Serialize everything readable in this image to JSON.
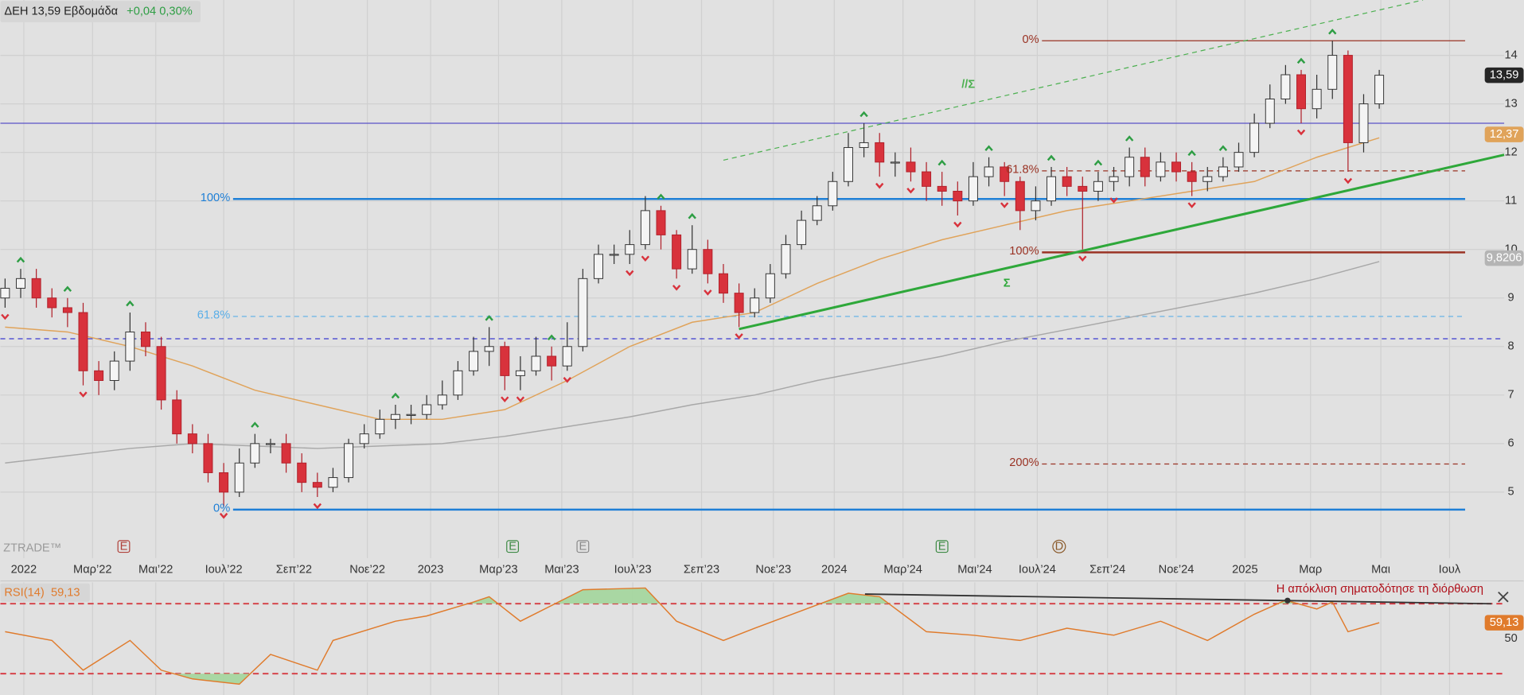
{
  "header": {
    "symbol": "ΔΕΗ 13,59 Εβδομάδα",
    "change": "+0,04 0,30%"
  },
  "chart_data": [
    {
      "type": "candlestick",
      "open": [
        9.0,
        9.2,
        9.4,
        9.0,
        8.8,
        8.7,
        7.5,
        7.3,
        7.7,
        8.3,
        8.0,
        6.9,
        6.2,
        6.0,
        5.4,
        5.0,
        5.6,
        6.0,
        6.0,
        5.6,
        5.2,
        5.1,
        5.3,
        6.0,
        6.2,
        6.5,
        6.6,
        6.6,
        6.8,
        7.0,
        7.5,
        7.9,
        8.0,
        7.4,
        7.5,
        7.8,
        7.6,
        8.0,
        9.4,
        9.9,
        9.9,
        10.1,
        10.8,
        10.3,
        9.6,
        10.0,
        9.5,
        9.1,
        8.7,
        9.0,
        9.5,
        10.1,
        10.6,
        10.9,
        11.4,
        12.1,
        12.2,
        11.8,
        11.8,
        11.6,
        11.3,
        11.2,
        11.0,
        11.5,
        11.7,
        11.4,
        10.8,
        11.0,
        11.5,
        11.3,
        11.2,
        11.4,
        11.5,
        11.9,
        11.5,
        11.8,
        11.6,
        11.4,
        11.5,
        11.7,
        12.0,
        12.6,
        13.1,
        13.6,
        12.9,
        13.3,
        14.0,
        12.2,
        13.0
      ],
      "high": [
        9.4,
        9.6,
        9.6,
        9.2,
        9.0,
        8.9,
        7.7,
        7.9,
        8.7,
        8.5,
        8.2,
        7.1,
        6.4,
        6.2,
        5.6,
        5.9,
        6.2,
        6.1,
        6.2,
        5.8,
        5.4,
        5.5,
        6.1,
        6.4,
        6.7,
        6.8,
        6.8,
        7.0,
        7.3,
        7.7,
        8.2,
        8.4,
        8.1,
        7.8,
        8.2,
        8.0,
        8.5,
        9.6,
        10.1,
        10.1,
        10.4,
        11.1,
        10.9,
        10.4,
        10.5,
        10.2,
        9.7,
        9.3,
        9.2,
        9.7,
        10.3,
        10.8,
        11.1,
        11.6,
        12.4,
        12.6,
        12.4,
        12.0,
        12.1,
        11.8,
        11.6,
        11.4,
        11.8,
        11.9,
        11.8,
        11.5,
        11.3,
        11.7,
        11.7,
        11.5,
        11.6,
        11.7,
        12.1,
        12.1,
        12.0,
        12.0,
        11.8,
        11.7,
        11.9,
        12.2,
        12.8,
        13.4,
        13.8,
        13.7,
        13.6,
        14.3,
        14.1,
        13.2,
        13.7
      ],
      "low": [
        8.8,
        9.0,
        8.8,
        8.6,
        8.4,
        7.2,
        7.0,
        7.1,
        7.5,
        7.8,
        6.7,
        6.0,
        5.8,
        5.2,
        4.7,
        4.9,
        5.5,
        5.8,
        5.4,
        5.0,
        4.9,
        5.0,
        5.2,
        5.9,
        6.1,
        6.3,
        6.4,
        6.5,
        6.7,
        6.9,
        7.4,
        7.6,
        7.1,
        7.1,
        7.4,
        7.3,
        7.5,
        7.9,
        9.3,
        9.7,
        9.7,
        10.0,
        10.0,
        9.4,
        9.5,
        9.3,
        8.9,
        8.4,
        8.6,
        8.9,
        9.4,
        10.0,
        10.5,
        10.8,
        11.3,
        11.9,
        11.5,
        11.5,
        11.4,
        11.0,
        10.9,
        10.7,
        10.9,
        11.3,
        11.1,
        10.4,
        10.6,
        10.9,
        11.1,
        10.0,
        11.0,
        11.2,
        11.3,
        11.3,
        11.4,
        11.4,
        11.1,
        11.2,
        11.4,
        11.6,
        11.9,
        12.5,
        13.0,
        12.6,
        12.7,
        13.1,
        11.6,
        12.0,
        12.9
      ],
      "close": [
        9.2,
        9.4,
        9.0,
        8.8,
        8.7,
        7.5,
        7.3,
        7.7,
        8.3,
        8.0,
        6.9,
        6.2,
        6.0,
        5.4,
        5.0,
        5.6,
        6.0,
        6.0,
        5.6,
        5.2,
        5.1,
        5.3,
        6.0,
        6.2,
        6.5,
        6.6,
        6.6,
        6.8,
        7.0,
        7.5,
        7.9,
        8.0,
        7.4,
        7.5,
        7.8,
        7.6,
        8.0,
        9.4,
        9.9,
        9.9,
        10.1,
        10.8,
        10.3,
        9.6,
        10.0,
        9.5,
        9.1,
        8.7,
        9.0,
        9.5,
        10.1,
        10.6,
        10.9,
        11.4,
        12.1,
        12.2,
        11.8,
        11.8,
        11.6,
        11.3,
        11.2,
        11.0,
        11.5,
        11.7,
        11.4,
        10.8,
        11.0,
        11.5,
        11.3,
        11.2,
        11.4,
        11.5,
        11.9,
        11.5,
        11.8,
        11.6,
        11.4,
        11.5,
        11.7,
        12.0,
        12.6,
        13.1,
        13.6,
        12.9,
        13.3,
        14.0,
        12.2,
        13.0,
        13.59
      ],
      "up_color": "#f4f4f4",
      "down_color": "#d8323c",
      "xlim": [
        -0.3,
        96
      ],
      "xticks": [
        {
          "value": 1.2,
          "label": "2022"
        },
        {
          "value": 5.6,
          "label": "Μαρ’22"
        },
        {
          "value": 9.65,
          "label": "Μαι’22"
        },
        {
          "value": 14.0,
          "label": "Ιουλ’22"
        },
        {
          "value": 18.5,
          "label": "Σεπ’22"
        },
        {
          "value": 23.2,
          "label": "Νοε’22"
        },
        {
          "value": 27.25,
          "label": "2023"
        },
        {
          "value": 31.6,
          "label": "Μαρ’23"
        },
        {
          "value": 35.65,
          "label": "Μαι’23"
        },
        {
          "value": 40.2,
          "label": "Ιουλ’23"
        },
        {
          "value": 44.6,
          "label": "Σεπ’23"
        },
        {
          "value": 49.2,
          "label": "Νοε’23"
        },
        {
          "value": 53.1,
          "label": "2024"
        },
        {
          "value": 57.5,
          "label": "Μαρ’24"
        },
        {
          "value": 62.1,
          "label": "Μαι’24"
        },
        {
          "value": 66.1,
          "label": "Ιουλ’24"
        },
        {
          "value": 70.6,
          "label": "Σεπ’24"
        },
        {
          "value": 75.0,
          "label": "Νοε’24"
        },
        {
          "value": 79.4,
          "label": "2025"
        },
        {
          "value": 83.6,
          "label": "Μαρ"
        },
        {
          "value": 88.1,
          "label": "Μαι"
        },
        {
          "value": 92.5,
          "label": "Ιουλ"
        }
      ],
      "ylim": [
        3.64,
        15.14
      ],
      "yticks": [
        5,
        6,
        7,
        8,
        9,
        10,
        11,
        12,
        13,
        14
      ],
      "grid": true,
      "overlays": [
        {
          "color": "#e0a35a",
          "x": [
            0,
            4,
            8,
            12,
            16,
            20,
            24,
            28,
            32,
            36,
            40,
            44,
            48,
            52,
            56,
            60,
            64,
            68,
            72,
            76,
            80,
            84,
            88
          ],
          "values": [
            8.4,
            8.3,
            8.0,
            7.6,
            7.1,
            6.8,
            6.5,
            6.5,
            6.7,
            7.3,
            8.0,
            8.5,
            8.7,
            9.3,
            9.8,
            10.2,
            10.5,
            10.8,
            11.0,
            11.2,
            11.4,
            11.9,
            12.3
          ]
        },
        {
          "color": "#a8a8a8",
          "x": [
            0,
            4,
            8,
            12,
            16,
            20,
            24,
            28,
            32,
            36,
            40,
            44,
            48,
            52,
            56,
            60,
            64,
            68,
            72,
            76,
            80,
            84,
            88
          ],
          "values": [
            5.6,
            5.75,
            5.9,
            6.0,
            5.95,
            5.9,
            5.95,
            6.0,
            6.15,
            6.35,
            6.55,
            6.8,
            7.0,
            7.3,
            7.55,
            7.8,
            8.1,
            8.35,
            8.6,
            8.85,
            9.1,
            9.4,
            9.75
          ]
        }
      ],
      "levels": [
        {
          "value": 12.6,
          "color": "#5a52c8",
          "style": "solid",
          "width": 1
        },
        {
          "value": 8.16,
          "color": "#3b3bd0",
          "style": "dashed",
          "width": 1
        },
        {
          "value": 11.04,
          "label": "100%",
          "color": "#1e7fd6",
          "style": "solid",
          "width": 2,
          "from": 14.6,
          "to": 93.5
        },
        {
          "value": 8.62,
          "label": "61.8%",
          "color": "#5aaee8",
          "style": "dashed",
          "width": 1,
          "from": 14.6,
          "to": 93.5
        },
        {
          "value": 4.64,
          "label": "0%",
          "color": "#1e7fd6",
          "style": "solid",
          "width": 2,
          "from": 14.6,
          "to": 93.5
        },
        {
          "value": 14.3,
          "label": "0%",
          "color": "#9a3324",
          "style": "solid",
          "width": 1,
          "from": 66.4,
          "to": 93.5
        },
        {
          "value": 11.62,
          "label": "61.8%",
          "color": "#9a3324",
          "style": "dashed",
          "width": 1,
          "from": 66.4,
          "to": 93.5
        },
        {
          "value": 9.94,
          "label": "100%",
          "color": "#9a3324",
          "style": "solid",
          "width": 2,
          "from": 66.4,
          "to": 93.5
        },
        {
          "value": 5.58,
          "label": "200%",
          "color": "#9a3324",
          "style": "dashed",
          "width": 1,
          "from": 66.4,
          "to": 93.5
        }
      ],
      "trendlines": [
        {
          "label": "Σ",
          "x": [
            47,
            96
          ],
          "values": [
            8.36,
            11.95
          ],
          "color": "#2ea83a",
          "style": "solid"
        },
        {
          "label": "//Σ",
          "x": [
            46,
            90.8
          ],
          "values": [
            11.84,
            15.14
          ],
          "color": "#4cb050",
          "style": "dashed"
        }
      ],
      "fractal_highs": [
        1,
        4,
        8,
        16,
        25,
        31,
        35,
        42,
        44,
        55,
        60,
        63,
        67,
        70,
        72,
        76,
        78,
        83,
        85
      ],
      "fractal_lows": [
        0,
        5,
        14,
        20,
        32,
        33,
        36,
        40,
        41,
        43,
        45,
        47,
        56,
        58,
        61,
        64,
        69,
        71,
        76,
        83,
        86
      ],
      "events": [
        {
          "label": "E",
          "x": 7.6,
          "color": "#b0413a"
        },
        {
          "label": "E",
          "x": 32.5,
          "color": "#3e8a45"
        },
        {
          "label": "E",
          "x": 37.0,
          "color": "#8a8a8a"
        },
        {
          "label": "E",
          "x": 60.0,
          "color": "#3e8a45"
        },
        {
          "label": "D",
          "x": 67.5,
          "color": "#8a5a2a"
        }
      ],
      "last_labels": [
        {
          "value": 13.59,
          "label": "13,59",
          "color": "#262626"
        },
        {
          "value": 12.37,
          "label": "12,37",
          "color": "#e0a35a"
        },
        {
          "value": 9.8206,
          "label": "9,8206",
          "color": "#b4b4b4"
        }
      ],
      "watermark": "ZTRADE™"
    },
    {
      "type": "line",
      "title": "RSI(14)",
      "value_label": "59,13",
      "color": "#e07b2c",
      "xlim": [
        -0.3,
        96
      ],
      "x": [
        0,
        3,
        5,
        8,
        10,
        12,
        15,
        17,
        20,
        21,
        25,
        27,
        30,
        31,
        33,
        37,
        41,
        43,
        46,
        48,
        51,
        54,
        56,
        59,
        62,
        65,
        68,
        71,
        74,
        77,
        80,
        82,
        84,
        85,
        86,
        88
      ],
      "values": [
        54,
        49,
        32,
        49,
        32,
        27,
        24,
        41,
        32,
        49,
        60,
        63,
        71,
        74,
        60,
        78,
        79,
        60,
        49,
        56,
        66,
        76,
        74,
        54,
        52,
        49,
        56,
        52,
        60,
        49,
        64,
        72,
        67,
        71,
        54,
        59.13
      ],
      "ylim": [
        17.8,
        82.2
      ],
      "yticks": [
        50
      ],
      "levels": [
        70,
        30
      ],
      "fill_color": "#a3d69c",
      "annotation": "Η απόκλιση σηματοδότησε τη διόρθωση",
      "last_label": {
        "value": 59.13,
        "label": "59,13"
      }
    }
  ]
}
